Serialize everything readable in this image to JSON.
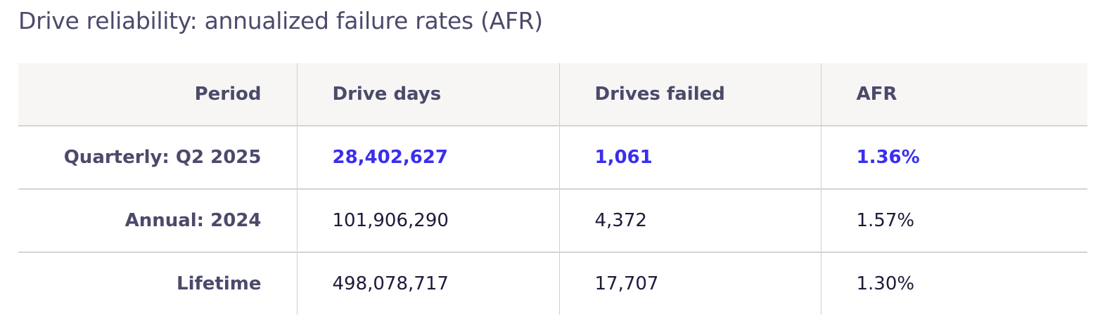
{
  "header": {
    "title": "Drive reliability: annualized failure rates (AFR)"
  },
  "table": {
    "columns": [
      "Period",
      "Drive days",
      "Drives failed",
      "AFR"
    ],
    "rows": [
      [
        "Quarterly: Q2 2025",
        "28,402,627",
        "1,061",
        "1.36%"
      ],
      [
        "Annual: 2024",
        "101,906,290",
        "4,372",
        "1.57%"
      ],
      [
        "Lifetime",
        "498,078,717",
        "17,707",
        "1.30%"
      ]
    ]
  }
}
